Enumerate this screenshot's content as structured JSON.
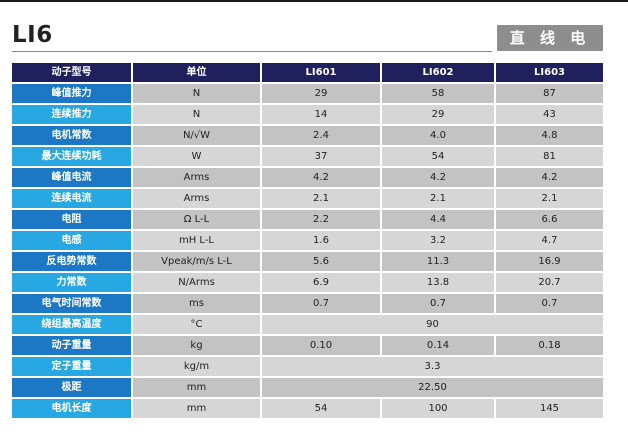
{
  "header": {
    "title": "LI6",
    "badge": "直 线 电 机"
  },
  "table": {
    "columns": [
      "动子型号",
      "单位",
      "LI601",
      "LI602",
      "LI603"
    ],
    "rows": [
      {
        "label": "峰值推力",
        "unit": "N",
        "values": [
          "29",
          "58",
          "87"
        ]
      },
      {
        "label": "连续推力",
        "unit": "N",
        "values": [
          "14",
          "29",
          "43"
        ]
      },
      {
        "label": "电机常数",
        "unit": "N/√W",
        "values": [
          "2.4",
          "4.0",
          "4.8"
        ]
      },
      {
        "label": "最大连续功耗",
        "unit": "W",
        "values": [
          "37",
          "54",
          "81"
        ]
      },
      {
        "label": "峰值电流",
        "unit": "Arms",
        "values": [
          "4.2",
          "4.2",
          "4.2"
        ]
      },
      {
        "label": "连续电流",
        "unit": "Arms",
        "values": [
          "2.1",
          "2.1",
          "2.1"
        ]
      },
      {
        "label": "电阻",
        "unit": "Ω L-L",
        "values": [
          "2.2",
          "4.4",
          "6.6"
        ]
      },
      {
        "label": "电感",
        "unit": "mH L-L",
        "values": [
          "1.6",
          "3.2",
          "4.7"
        ]
      },
      {
        "label": "反电势常数",
        "unit": "Vpeak/m/s L-L",
        "values": [
          "5.6",
          "11.3",
          "16.9"
        ]
      },
      {
        "label": "力常数",
        "unit": "N/Arms",
        "values": [
          "6.9",
          "13.8",
          "20.7"
        ]
      },
      {
        "label": "电气时间常数",
        "unit": "ms",
        "values": [
          "0.7",
          "0.7",
          "0.7"
        ]
      },
      {
        "label": "绕组最高温度",
        "unit": "°C",
        "merged": "90"
      },
      {
        "label": "动子重量",
        "unit": "kg",
        "values": [
          "0.10",
          "0.14",
          "0.18"
        ]
      },
      {
        "label": "定子重量",
        "unit": "kg/m",
        "merged": "3.3"
      },
      {
        "label": "极距",
        "unit": "mm",
        "merged": "22.50"
      },
      {
        "label": "电机长度",
        "unit": "mm",
        "values": [
          "54",
          "100",
          "145"
        ]
      }
    ]
  }
}
